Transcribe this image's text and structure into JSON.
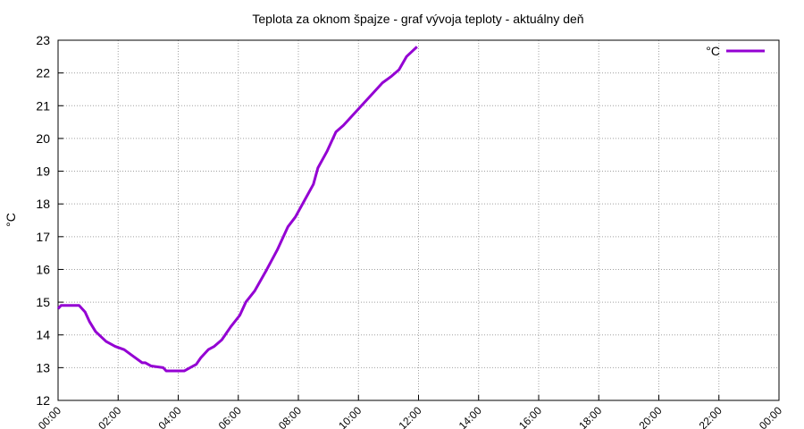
{
  "chart_data": {
    "type": "line",
    "title": "Teplota za oknom špajze - graf vývoja teploty - aktuálny deň",
    "y_label": "°C",
    "x": [
      0,
      0.1,
      0.7,
      0.9,
      1.05,
      1.25,
      1.6,
      1.9,
      2.2,
      2.5,
      2.8,
      2.9,
      3.1,
      3.5,
      3.6,
      4.2,
      4.4,
      4.6,
      4.75,
      5.0,
      5.2,
      5.45,
      5.75,
      6.05,
      6.25,
      6.55,
      6.95,
      7.3,
      7.65,
      7.9,
      8.2,
      8.5,
      8.65,
      8.95,
      9.25,
      9.5,
      9.8,
      10.1,
      10.5,
      10.8,
      11.1,
      11.35,
      11.6,
      11.95
    ],
    "series": [
      {
        "name": "°C",
        "color": "#9400d3",
        "values": [
          14.8,
          14.9,
          14.9,
          14.7,
          14.4,
          14.1,
          13.8,
          13.65,
          13.55,
          13.35,
          13.15,
          13.15,
          13.05,
          13.0,
          12.9,
          12.9,
          13.0,
          13.1,
          13.3,
          13.55,
          13.65,
          13.85,
          14.25,
          14.6,
          15.0,
          15.35,
          16.0,
          16.6,
          17.3,
          17.6,
          18.1,
          18.6,
          19.1,
          19.6,
          20.2,
          20.4,
          20.7,
          21.0,
          21.4,
          21.7,
          21.9,
          22.1,
          22.5,
          22.8
        ]
      }
    ],
    "xlim": [
      0,
      24
    ],
    "xticks": [
      {
        "value": 0,
        "label": "00:00"
      },
      {
        "value": 2,
        "label": "02:00"
      },
      {
        "value": 4,
        "label": "04:00"
      },
      {
        "value": 6,
        "label": "06:00"
      },
      {
        "value": 8,
        "label": "08:00"
      },
      {
        "value": 10,
        "label": "10:00"
      },
      {
        "value": 12,
        "label": "12:00"
      },
      {
        "value": 14,
        "label": "14:00"
      },
      {
        "value": 16,
        "label": "16:00"
      },
      {
        "value": 18,
        "label": "18:00"
      },
      {
        "value": 20,
        "label": "20:00"
      },
      {
        "value": 22,
        "label": "22:00"
      },
      {
        "value": 24,
        "label": "00:00"
      }
    ],
    "ylim": [
      12,
      23
    ],
    "yticks": [
      12,
      13,
      14,
      15,
      16,
      17,
      18,
      19,
      20,
      21,
      22,
      23
    ],
    "grid": true,
    "legend": "top right"
  }
}
